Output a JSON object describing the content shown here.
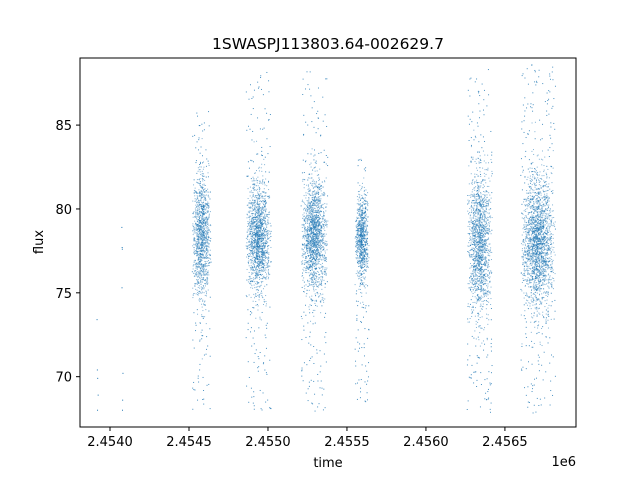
{
  "chart_data": {
    "type": "scatter",
    "title": "1SWASPJ113803.64-002629.7",
    "xlabel": "time",
    "ylabel": "flux",
    "x_offset_label": "1e6",
    "xlim": [
      2453810,
      2456950
    ],
    "ylim": [
      67,
      89
    ],
    "xticks": [
      2454000,
      2454500,
      2455000,
      2455500,
      2456000,
      2456500
    ],
    "xtick_labels": [
      "2.4540",
      "2.4545",
      "2.4550",
      "2.4555",
      "2.4560",
      "2.4565"
    ],
    "yticks": [
      70,
      75,
      80,
      85
    ],
    "ytick_labels": [
      "70",
      "75",
      "80",
      "85"
    ],
    "marker_color": "#1f77b4",
    "grid": false,
    "observing_seasons": [
      {
        "x_start": 2454520,
        "x_end": 2454640,
        "center": 78.3,
        "spread": 1.8,
        "min": 68,
        "max": 86
      },
      {
        "x_start": 2454860,
        "x_end": 2455020,
        "center": 78.3,
        "spread": 1.6,
        "min": 68,
        "max": 88.3
      },
      {
        "x_start": 2455210,
        "x_end": 2455380,
        "center": 78.3,
        "spread": 1.6,
        "min": 67.8,
        "max": 88.4
      },
      {
        "x_start": 2455550,
        "x_end": 2455640,
        "center": 78.3,
        "spread": 1.3,
        "min": 68.5,
        "max": 83
      },
      {
        "x_start": 2456260,
        "x_end": 2456420,
        "center": 78.0,
        "spread": 2.1,
        "min": 67.8,
        "max": 88.5
      },
      {
        "x_start": 2456600,
        "x_end": 2456820,
        "center": 78.0,
        "spread": 2.0,
        "min": 67.8,
        "max": 88.6
      }
    ],
    "isolated_points": [
      {
        "x": 2453918,
        "y": 73.4
      },
      {
        "x": 2453920,
        "y": 70.4
      },
      {
        "x": 2453922,
        "y": 69.9
      },
      {
        "x": 2453925,
        "y": 68.9
      },
      {
        "x": 2453921,
        "y": 68.0
      },
      {
        "x": 2454075,
        "y": 78.9
      },
      {
        "x": 2454077,
        "y": 77.7
      },
      {
        "x": 2454078,
        "y": 77.6
      },
      {
        "x": 2454076,
        "y": 75.3
      },
      {
        "x": 2454082,
        "y": 70.2
      },
      {
        "x": 2454080,
        "y": 68.6
      },
      {
        "x": 2454079,
        "y": 68.0
      }
    ]
  }
}
